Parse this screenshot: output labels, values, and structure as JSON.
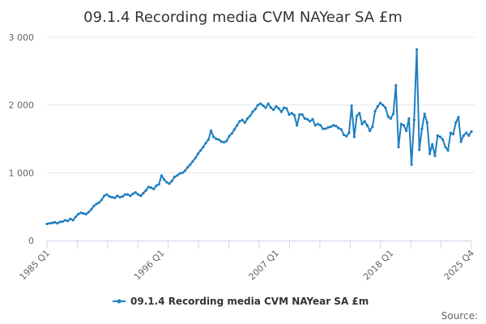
{
  "chart_data": {
    "type": "line",
    "title": "09.1.4 Recording media CVM NAYear SA £m",
    "source": "Source:",
    "legend_position": "bottom",
    "grid": "horizontal",
    "ylim": [
      0,
      3000
    ],
    "y_ticks": [
      0,
      1000,
      2000,
      3000
    ],
    "y_tick_labels": [
      "0",
      "1 000",
      "2 000",
      "3 000"
    ],
    "x_tick_labels": [
      {
        "index": 0,
        "label": "1985 Q1"
      },
      {
        "index": 44,
        "label": "1996 Q1"
      },
      {
        "index": 88,
        "label": "2007 Q1"
      },
      {
        "index": 132,
        "label": "2018 Q1"
      },
      {
        "index": 163,
        "label": "2025 Q4"
      }
    ],
    "colors": {
      "series": "#1f7fc0",
      "grid": "#e6e6e6",
      "axis": "#ccd6eb"
    },
    "series": [
      {
        "name": "09.1.4 Recording media CVM NAYear SA £m",
        "x_start": "1985 Q1",
        "x_end": "2025 Q4",
        "values": [
          245,
          255,
          260,
          270,
          255,
          275,
          280,
          300,
          290,
          320,
          300,
          350,
          390,
          410,
          400,
          390,
          420,
          460,
          510,
          540,
          560,
          600,
          660,
          680,
          650,
          640,
          630,
          660,
          640,
          650,
          680,
          680,
          660,
          690,
          710,
          680,
          660,
          700,
          740,
          790,
          780,
          760,
          810,
          830,
          960,
          900,
          860,
          840,
          880,
          940,
          960,
          990,
          1000,
          1030,
          1080,
          1120,
          1170,
          1220,
          1280,
          1330,
          1380,
          1440,
          1490,
          1620,
          1530,
          1500,
          1490,
          1460,
          1450,
          1470,
          1540,
          1580,
          1640,
          1700,
          1760,
          1780,
          1740,
          1800,
          1840,
          1900,
          1940,
          2000,
          2020,
          1990,
          1960,
          2020,
          1960,
          1930,
          1980,
          1950,
          1900,
          1960,
          1950,
          1860,
          1880,
          1850,
          1700,
          1860,
          1860,
          1800,
          1790,
          1760,
          1790,
          1700,
          1720,
          1700,
          1650,
          1650,
          1670,
          1680,
          1700,
          1690,
          1660,
          1640,
          1560,
          1540,
          1590,
          1990,
          1530,
          1840,
          1880,
          1720,
          1760,
          1700,
          1620,
          1680,
          1910,
          1980,
          2030,
          2000,
          1960,
          1830,
          1800,
          1870,
          2290,
          1380,
          1720,
          1700,
          1620,
          1800,
          1120,
          1780,
          2820,
          1340,
          1650,
          1870,
          1740,
          1280,
          1420,
          1250,
          1550,
          1530,
          1490,
          1380,
          1330,
          1590,
          1570,
          1740,
          1820,
          1460,
          1550,
          1590,
          1550,
          1610
        ]
      }
    ]
  }
}
